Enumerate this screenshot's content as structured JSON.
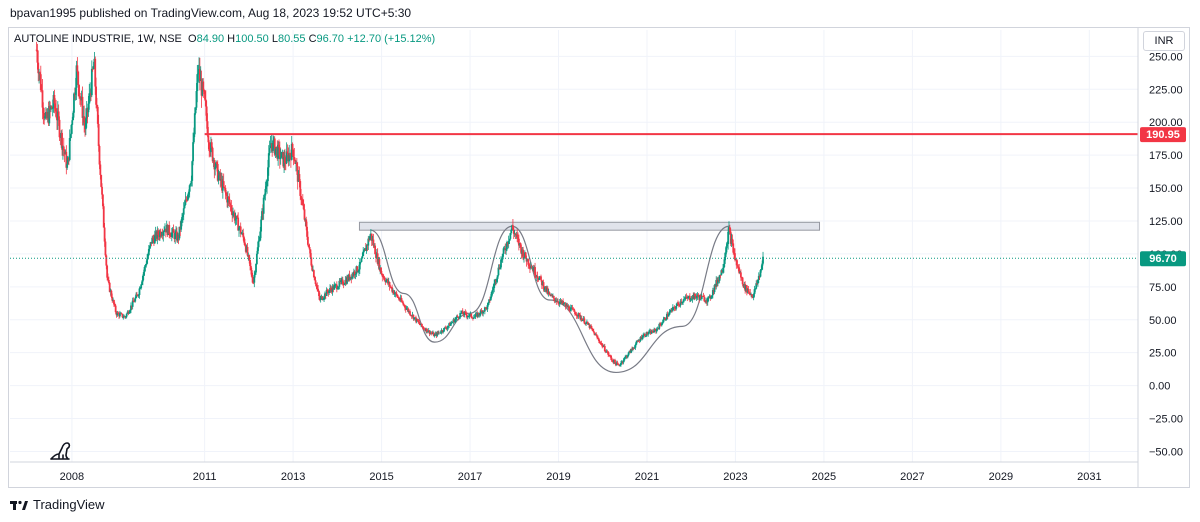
{
  "header": {
    "publisher": "bpavan1995 published on TradingView.com, Aug 18, 2023 19:52 UTC+5:30"
  },
  "legend": {
    "symbol": "AUTOLINE INDUSTRIE, 1W, NSE",
    "o_label": "O",
    "o_value": "84.90",
    "h_label": "H",
    "h_value": "100.50",
    "l_label": "L",
    "l_value": "80.55",
    "c_label": "C",
    "c_value": "96.70",
    "change": "+12.70 (+15.12%)"
  },
  "currency": "INR",
  "footer": {
    "brand": "TradingView"
  },
  "icons": {
    "logo": "tradingview-logo-icon",
    "replay": "dinosaur-icon"
  },
  "colors": {
    "up": "#089981",
    "down": "#f23645",
    "resistance": "#f23645",
    "last": "#089981",
    "zone": "#d1d4dc",
    "curve": "#787b86"
  },
  "chart_data": {
    "type": "candlestick",
    "x_ticks": [
      2008,
      2011,
      2013,
      2015,
      2017,
      2019,
      2021,
      2023,
      2025,
      2027,
      2029,
      2031
    ],
    "y_ticks": [
      "250.00",
      "225.00",
      "200.00",
      "175.00",
      "150.00",
      "125.00",
      "100.00",
      "75.00",
      "50.00",
      "25.00",
      "0.00",
      "−25.00",
      "−50.00"
    ],
    "ylim": [
      -58,
      270
    ],
    "xlim": [
      2006.6,
      2032.1
    ],
    "price_series": [
      [
        2007.2,
        255
      ],
      [
        2007.4,
        200
      ],
      [
        2007.6,
        215
      ],
      [
        2007.9,
        165
      ],
      [
        2008.1,
        240
      ],
      [
        2008.3,
        195
      ],
      [
        2008.5,
        245
      ],
      [
        2008.6,
        185
      ],
      [
        2008.8,
        80
      ],
      [
        2009.0,
        55
      ],
      [
        2009.2,
        52
      ],
      [
        2009.5,
        70
      ],
      [
        2009.8,
        110
      ],
      [
        2010.1,
        120
      ],
      [
        2010.4,
        112
      ],
      [
        2010.7,
        160
      ],
      [
        2010.85,
        240
      ],
      [
        2011.0,
        215
      ],
      [
        2011.1,
        185
      ],
      [
        2011.3,
        160
      ],
      [
        2011.6,
        135
      ],
      [
        2011.9,
        110
      ],
      [
        2012.1,
        78
      ],
      [
        2012.3,
        130
      ],
      [
        2012.5,
        185
      ],
      [
        2012.8,
        170
      ],
      [
        2013.0,
        180
      ],
      [
        2013.2,
        140
      ],
      [
        2013.4,
        95
      ],
      [
        2013.6,
        65
      ],
      [
        2013.8,
        72
      ],
      [
        2014.2,
        80
      ],
      [
        2014.5,
        90
      ],
      [
        2014.75,
        115
      ],
      [
        2015.0,
        85
      ],
      [
        2015.3,
        70
      ],
      [
        2015.6,
        57
      ],
      [
        2015.9,
        45
      ],
      [
        2016.2,
        38
      ],
      [
        2016.5,
        45
      ],
      [
        2016.8,
        55
      ],
      [
        2017.1,
        52
      ],
      [
        2017.4,
        60
      ],
      [
        2017.7,
        95
      ],
      [
        2017.95,
        120
      ],
      [
        2018.2,
        100
      ],
      [
        2018.5,
        85
      ],
      [
        2018.8,
        68
      ],
      [
        2019.1,
        62
      ],
      [
        2019.4,
        55
      ],
      [
        2019.7,
        45
      ],
      [
        2020.0,
        30
      ],
      [
        2020.2,
        20
      ],
      [
        2020.35,
        15
      ],
      [
        2020.6,
        25
      ],
      [
        2020.9,
        38
      ],
      [
        2021.2,
        42
      ],
      [
        2021.5,
        55
      ],
      [
        2021.8,
        65
      ],
      [
        2022.1,
        68
      ],
      [
        2022.4,
        65
      ],
      [
        2022.7,
        88
      ],
      [
        2022.85,
        118
      ],
      [
        2023.0,
        95
      ],
      [
        2023.2,
        75
      ],
      [
        2023.4,
        68
      ],
      [
        2023.55,
        85
      ],
      [
        2023.63,
        96.7
      ]
    ],
    "resistance_level": 190.95,
    "resistance_label": "190.95",
    "resistance_x_start": 2011.0,
    "last_price": 96.7,
    "last_label": "96.70",
    "neckline_zone": {
      "x_start": 2014.5,
      "x_end": 2024.9,
      "y_low": 118,
      "y_high": 124
    },
    "cup_curves": [
      {
        "points": [
          [
            2014.75,
            118
          ],
          [
            2015.5,
            70
          ],
          [
            2016.2,
            33
          ],
          [
            2017.0,
            55
          ],
          [
            2017.95,
            121
          ]
        ]
      },
      {
        "points": [
          [
            2017.95,
            121
          ],
          [
            2018.8,
            65
          ],
          [
            2020.3,
            10
          ],
          [
            2021.8,
            45
          ],
          [
            2022.85,
            121
          ]
        ]
      }
    ]
  }
}
